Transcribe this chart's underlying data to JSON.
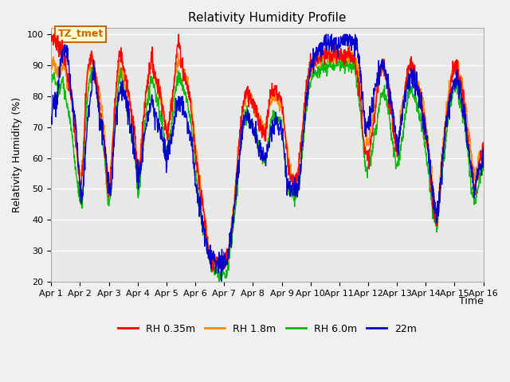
{
  "title": "Relativity Humidity Profile",
  "xlabel": "Time",
  "ylabel": "Relativity Humidity (%)",
  "ylim": [
    20,
    102
  ],
  "yticks": [
    20,
    30,
    40,
    50,
    60,
    70,
    80,
    90,
    100
  ],
  "x_labels": [
    "Apr 1",
    "Apr 2",
    "Apr 3",
    "Apr 4",
    "Apr 5",
    "Apr 6",
    "Apr 7",
    "Apr 8",
    "Apr 9",
    "Apr 10",
    "Apr 11",
    "Apr 12",
    "Apr 13",
    "Apr 14",
    "Apr 15",
    "Apr 16"
  ],
  "series_colors": [
    "#ff0000",
    "#ff8c00",
    "#00bb00",
    "#0000cc"
  ],
  "series_labels": [
    "RH 0.35m",
    "RH 1.8m",
    "RH 6.0m",
    "22m"
  ],
  "annotation_text": "TZ_tmet",
  "annotation_color": "#cc6600",
  "annotation_bg": "#ffffcc",
  "plot_bg_color": "#e8e8e8",
  "fig_bg_color": "#f0f0f0",
  "title_fontsize": 11,
  "label_fontsize": 9,
  "tick_fontsize": 8,
  "linewidth": 1.0
}
